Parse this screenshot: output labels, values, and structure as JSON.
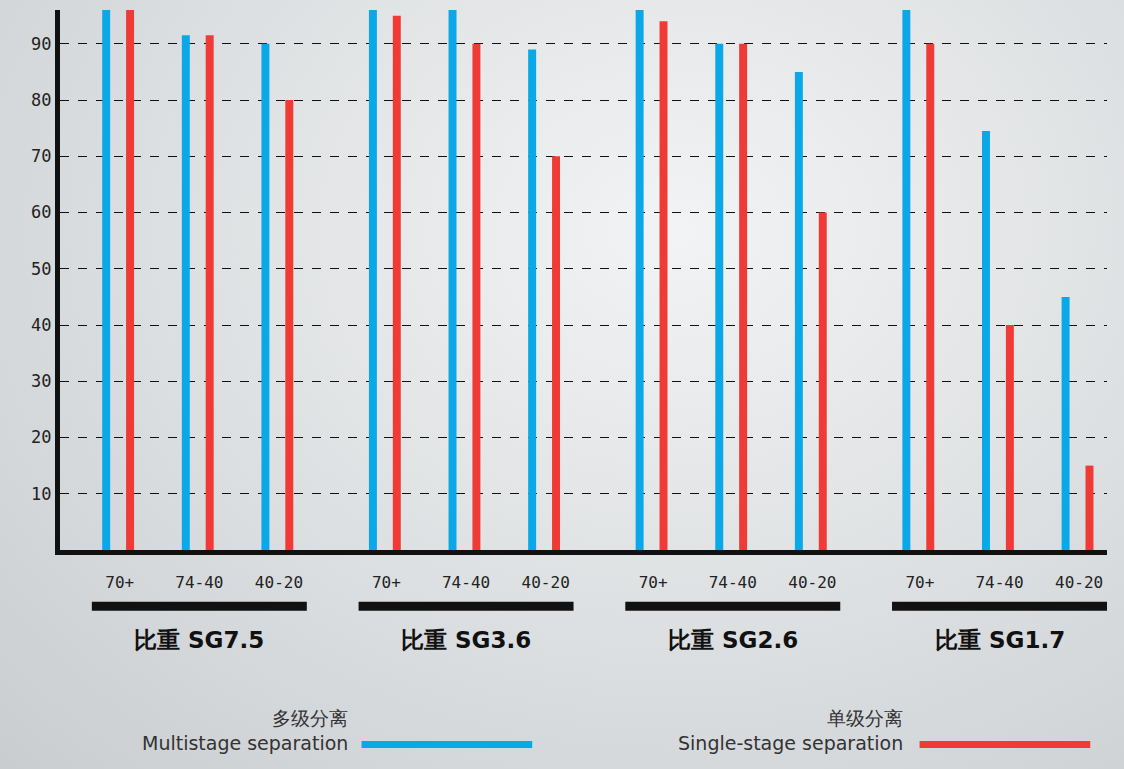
{
  "chart_data": {
    "type": "bar",
    "categories": [
      "70+",
      "74-40",
      "40-20",
      "70+",
      "74-40",
      "40-20",
      "70+",
      "74-40",
      "40-20",
      "70+",
      "74-40",
      "40-20"
    ],
    "groups": [
      "比重 SG7.5",
      "比重 SG3.6",
      "比重 SG2.6",
      "比重 SG1.7"
    ],
    "series": [
      {
        "name": "多级分离 Multistage separation",
        "color": "#0aa8e6",
        "values": [
          96,
          91.5,
          90,
          96,
          96,
          89,
          96,
          90,
          85,
          96,
          74.5,
          45
        ]
      },
      {
        "name": "单级分离 Single-stage separation",
        "color": "#ef3a36",
        "values": [
          96,
          91.5,
          80,
          95,
          90,
          70,
          94,
          90,
          60,
          90,
          40,
          15
        ]
      }
    ],
    "ylim": [
      0,
      96
    ],
    "yticks": [
      10,
      20,
      30,
      40,
      50,
      60,
      70,
      80,
      90
    ],
    "grid": true,
    "legend": "bottom"
  }
}
